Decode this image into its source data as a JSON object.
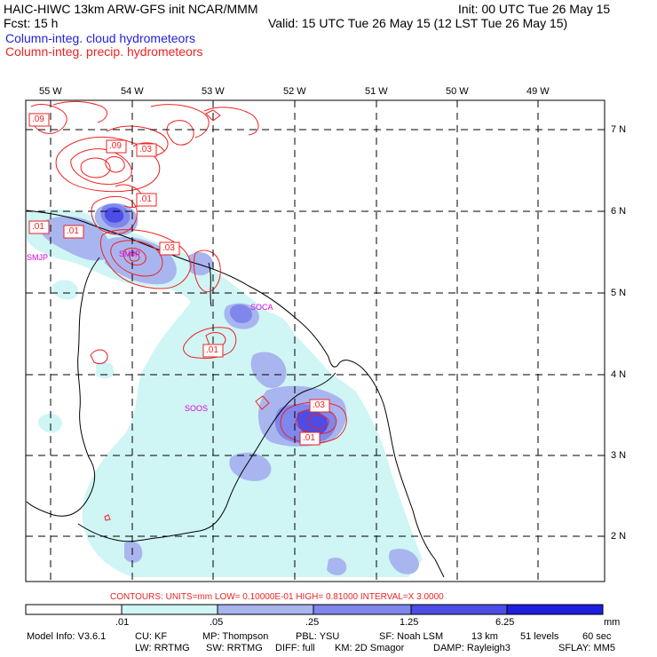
{
  "header": {
    "line1_left": "HAIC-HIWC 13km ARW-GFS init   NCAR/MMM",
    "line1_right": "Init: 00 UTC Tue 26 May 15",
    "line2_left": "Fcst:   15 h",
    "line2_right": "Valid: 15 UTC Tue 26 May 15 (12 LST Tue 26 May 15)",
    "field1": "Column-integ. cloud hydrometeors",
    "field2": "Column-integ. precip. hydrometeors",
    "field1_color": "#2222dd",
    "field2_color": "#ee2222"
  },
  "map": {
    "lon_labels": [
      "55 W",
      "54 W",
      "53 W",
      "52 W",
      "51 W",
      "50 W",
      "49 W"
    ],
    "lat_labels": [
      "7 N",
      "6 N",
      "5 N",
      "4 N",
      "3 N",
      "2 N"
    ],
    "stations": [
      "SMJP",
      "SMJP",
      "SOCA",
      "SOOS"
    ],
    "contour_labels": [
      ".09",
      ".09",
      ".03",
      ".01",
      ".01",
      ".01",
      ".03",
      ".01",
      ".03",
      ".01"
    ],
    "station_color": "#dd00dd",
    "contour_color": "#ee2222"
  },
  "contours_info": "CONTOURS:  UNITS=mm  LOW= 0.10000E-01  HIGH= 0.81000      INTERVAL=X  3.0000",
  "colorbar": {
    "ticks": [
      ".01",
      ".05",
      ".25",
      "1.25",
      "6.25"
    ],
    "unit": "mm",
    "colors": [
      "#ffffff",
      "#cff5f5",
      "#a9b5ef",
      "#7f86ec",
      "#4c4ce6",
      "#1e1ee0"
    ]
  },
  "footer": {
    "model_info": "Model Info: V3.6.1",
    "cu": "CU: KF",
    "mp": "MP: Thompson",
    "pbl": "PBL: YSU",
    "sf": "SF: Noah LSM",
    "res": "13 km",
    "levels": "51 levels",
    "dt": "60 sec",
    "lw": "LW: RRTMG",
    "sw": "SW: RRTMG",
    "diff": "DIFF: full",
    "km": "KM: 2D Smagor",
    "damp": "DAMP: Rayleigh3",
    "sflay": "SFLAY: MM5"
  }
}
